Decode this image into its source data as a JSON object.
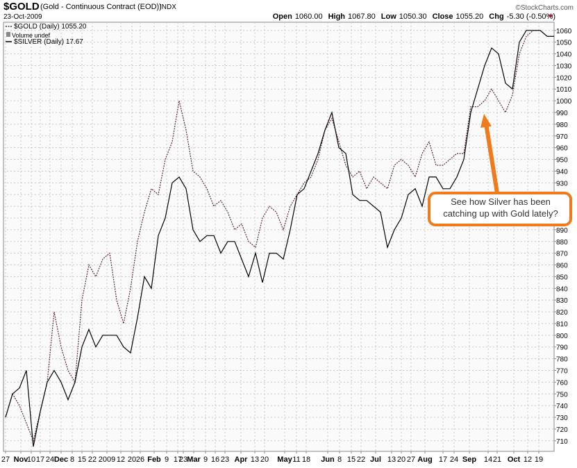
{
  "chart_data": {
    "type": "line",
    "symbol": "$GOLD",
    "subtitle": "(Gold - Continuous Contract (EOD))",
    "exchange": "INDX",
    "date": "23-Oct-2009",
    "quote": [
      {
        "label": "Open",
        "value": "1060.00"
      },
      {
        "label": "High",
        "value": "1067.80"
      },
      {
        "label": "Low",
        "value": "1050.30"
      },
      {
        "label": "Close",
        "value": "1055.20"
      },
      {
        "label": "Chg",
        "value": "-5.30 (-0.50%)"
      }
    ],
    "source": "©StockCharts.com",
    "volume_label": "Volume undef",
    "annotation": "See how Silver has been catching up with Gold lately?",
    "xlim": [
      0,
      79
    ],
    "xticks": [
      {
        "value": 0,
        "label": "27"
      },
      {
        "value": 2.2,
        "label": "Nov"
      },
      {
        "value": 3.7,
        "label": "10"
      },
      {
        "value": 5,
        "label": "17"
      },
      {
        "value": 6.4,
        "label": "24"
      },
      {
        "value": 8,
        "label": "Dec"
      },
      {
        "value": 9.6,
        "label": "8"
      },
      {
        "value": 11,
        "label": "15"
      },
      {
        "value": 12.5,
        "label": "22"
      },
      {
        "value": 14.6,
        "label": "2009"
      },
      {
        "value": 16.6,
        "label": "12"
      },
      {
        "value": 18.2,
        "label": "20"
      },
      {
        "value": 19.4,
        "label": "26"
      },
      {
        "value": 21.4,
        "label": "Feb"
      },
      {
        "value": 23.2,
        "label": "9"
      },
      {
        "value": 24.8,
        "label": "17"
      },
      {
        "value": 25.6,
        "label": "23"
      },
      {
        "value": 27.1,
        "label": "Mar"
      },
      {
        "value": 28.8,
        "label": "9"
      },
      {
        "value": 30.2,
        "label": "16"
      },
      {
        "value": 31.6,
        "label": "23"
      },
      {
        "value": 33.9,
        "label": "Apr"
      },
      {
        "value": 35.9,
        "label": "13"
      },
      {
        "value": 37.3,
        "label": "20"
      },
      {
        "value": 40.2,
        "label": "May"
      },
      {
        "value": 41.9,
        "label": "11"
      },
      {
        "value": 43.3,
        "label": "18"
      },
      {
        "value": 46.4,
        "label": "Jun"
      },
      {
        "value": 48.1,
        "label": "8"
      },
      {
        "value": 49.8,
        "label": "15"
      },
      {
        "value": 51.2,
        "label": "22"
      },
      {
        "value": 53.3,
        "label": "Jul"
      },
      {
        "value": 55.6,
        "label": "13"
      },
      {
        "value": 57,
        "label": "20"
      },
      {
        "value": 58.4,
        "label": "27"
      },
      {
        "value": 60.4,
        "label": "Aug"
      },
      {
        "value": 63,
        "label": "17"
      },
      {
        "value": 64.6,
        "label": "24"
      },
      {
        "value": 66.8,
        "label": "Sep"
      },
      {
        "value": 69.5,
        "label": "14"
      },
      {
        "value": 70.8,
        "label": "21"
      },
      {
        "value": 73.2,
        "label": "Oct"
      },
      {
        "value": 75.2,
        "label": "12"
      },
      {
        "value": 76.8,
        "label": "19"
      }
    ],
    "ylim": [
      701,
      1067
    ],
    "yticks": [
      710,
      720,
      730,
      740,
      750,
      760,
      770,
      780,
      790,
      800,
      810,
      820,
      830,
      840,
      850,
      860,
      870,
      880,
      890,
      900,
      910,
      920,
      930,
      940,
      950,
      960,
      970,
      980,
      990,
      1000,
      1010,
      1020,
      1030,
      1040,
      1050,
      1060
    ],
    "grid": true,
    "series": [
      {
        "name": "$GOLD (Daily) 1055.20",
        "color": "#5a2a30",
        "dash": true,
        "values": [
          730,
          750,
          740,
          725,
          710,
          735,
          760,
          820,
          790,
          770,
          760,
          830,
          860,
          850,
          865,
          870,
          830,
          810,
          840,
          880,
          905,
          925,
          920,
          950,
          965,
          1000,
          975,
          940,
          935,
          925,
          910,
          915,
          905,
          890,
          895,
          880,
          875,
          900,
          910,
          905,
          890,
          910,
          920,
          930,
          935,
          950,
          975,
          985,
          965,
          945,
          935,
          940,
          925,
          935,
          930,
          925,
          945,
          950,
          945,
          935,
          955,
          965,
          945,
          945,
          950,
          955,
          955,
          995,
          995,
          1000,
          1010,
          1000,
          990,
          1005,
          1040,
          1055,
          1060,
          1060,
          1055,
          1055
        ]
      },
      {
        "name": "$SILVER (Daily) 17.67",
        "color": "#000000",
        "dash": false,
        "values": [
          730,
          750,
          755,
          770,
          705,
          735,
          760,
          770,
          760,
          745,
          760,
          790,
          805,
          790,
          800,
          800,
          800,
          790,
          785,
          815,
          850,
          840,
          885,
          900,
          930,
          935,
          925,
          890,
          880,
          885,
          885,
          870,
          880,
          880,
          865,
          850,
          870,
          845,
          870,
          870,
          865,
          890,
          920,
          925,
          940,
          955,
          975,
          990,
          960,
          955,
          920,
          915,
          915,
          910,
          905,
          875,
          890,
          900,
          920,
          925,
          910,
          935,
          935,
          925,
          925,
          935,
          950,
          990,
          1010,
          1030,
          1045,
          1040,
          1015,
          1010,
          1050,
          1060,
          1060,
          1060,
          1055,
          1055
        ]
      }
    ]
  }
}
